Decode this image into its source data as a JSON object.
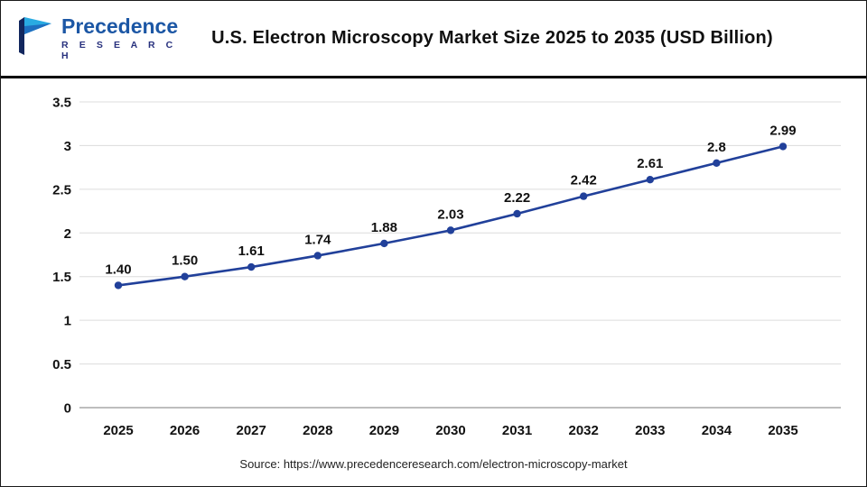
{
  "header": {
    "title": "U.S. Electron Microscopy Market Size 2025 to 2035 (USD Billion)",
    "logo_name": "Precedence",
    "logo_sub": "R E S E A R C H"
  },
  "footer": {
    "source": "Source: https://www.precedenceresearch.com/electron-microscopy-market"
  },
  "chart_data": {
    "type": "line",
    "title": "U.S. Electron Microscopy Market Size 2025 to 2035 (USD Billion)",
    "categories": [
      "2025",
      "2026",
      "2027",
      "2028",
      "2029",
      "2030",
      "2031",
      "2032",
      "2033",
      "2034",
      "2035"
    ],
    "values": [
      1.4,
      1.5,
      1.61,
      1.74,
      1.88,
      2.03,
      2.22,
      2.42,
      2.61,
      2.8,
      2.99
    ],
    "value_labels": [
      "1.40",
      "1.50",
      "1.61",
      "1.74",
      "1.88",
      "2.03",
      "2.22",
      "2.42",
      "2.61",
      "2.8",
      "2.99"
    ],
    "xlabel": "",
    "ylabel": "",
    "ylim": [
      0,
      3.5
    ],
    "ytick_step": 0.5,
    "grid": "horizontal",
    "legend": "none",
    "line_color": "#21409a",
    "marker_color": "#21409a",
    "gridline_color": "#dcdcdc",
    "zero_line_color": "#a8a8a8"
  }
}
